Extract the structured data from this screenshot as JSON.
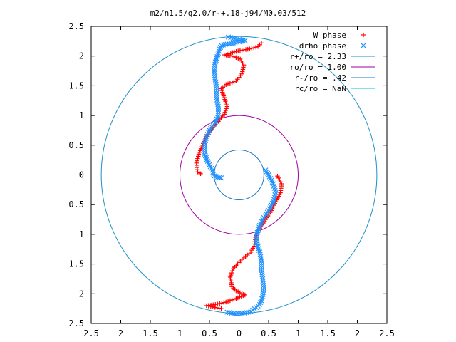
{
  "chart_data": {
    "type": "scatter",
    "title": "m2/n1.5/q2.0/r-+.18-j94/M0.03/512",
    "xlim": [
      -2.5,
      2.5
    ],
    "ylim": [
      -2.5,
      2.5
    ],
    "x_ticks": [
      -2.5,
      -2,
      -1.5,
      -1,
      -0.5,
      0,
      0.5,
      1,
      1.5,
      2,
      2.5
    ],
    "x_tick_labels": [
      "2.5",
      "2",
      "1.5",
      "1",
      "0.5",
      "0",
      "0.5",
      "1",
      "1.5",
      "2",
      "2.5"
    ],
    "y_ticks": [
      2.5,
      2,
      1.5,
      1,
      0.5,
      0,
      -0.5,
      -1,
      -1.5,
      -2,
      -2.5
    ],
    "y_tick_labels": [
      "2.5",
      "2",
      "1.5",
      "1",
      "0.5",
      "0",
      "0.5",
      "1",
      "1.5",
      "2",
      "2.5"
    ],
    "grid": false,
    "legend_position": "top-right",
    "series": [
      {
        "name": "W phase",
        "marker": "plus",
        "color": "#ff0000",
        "points": [
          [
            0.38,
            2.22
          ],
          [
            0.32,
            2.16
          ],
          [
            0.18,
            2.12
          ],
          [
            0.05,
            2.1
          ],
          [
            -0.08,
            2.07
          ],
          [
            -0.2,
            2.03
          ],
          [
            -0.25,
            2.02
          ],
          [
            -0.12,
            2.0
          ],
          [
            0.02,
            1.95
          ],
          [
            0.08,
            1.85
          ],
          [
            0.05,
            1.7
          ],
          [
            -0.05,
            1.58
          ],
          [
            -0.22,
            1.52
          ],
          [
            -0.3,
            1.45
          ],
          [
            -0.25,
            1.3
          ],
          [
            -0.2,
            1.15
          ],
          [
            -0.25,
            1.02
          ],
          [
            -0.35,
            0.9
          ],
          [
            -0.45,
            0.8
          ],
          [
            -0.55,
            0.65
          ],
          [
            -0.62,
            0.5
          ],
          [
            -0.68,
            0.35
          ],
          [
            -0.72,
            0.2
          ],
          [
            -0.7,
            0.05
          ],
          [
            -0.65,
            0.02
          ],
          [
            0.65,
            -0.02
          ],
          [
            0.72,
            -0.15
          ],
          [
            0.7,
            -0.3
          ],
          [
            0.62,
            -0.45
          ],
          [
            0.55,
            -0.6
          ],
          [
            0.45,
            -0.75
          ],
          [
            0.35,
            -0.9
          ],
          [
            0.28,
            -1.05
          ],
          [
            0.25,
            -1.2
          ],
          [
            0.2,
            -1.3
          ],
          [
            0.05,
            -1.42
          ],
          [
            -0.1,
            -1.58
          ],
          [
            -0.15,
            -1.72
          ],
          [
            -0.12,
            -1.88
          ],
          [
            -0.05,
            -1.95
          ],
          [
            0.05,
            -2.0
          ],
          [
            0.1,
            -2.02
          ],
          [
            -0.05,
            -2.08
          ],
          [
            -0.22,
            -2.14
          ],
          [
            -0.4,
            -2.18
          ],
          [
            -0.55,
            -2.2
          ],
          [
            -0.3,
            -2.25
          ]
        ]
      },
      {
        "name": "drho phase",
        "marker": "cross",
        "color": "#1e90ff",
        "points": [
          [
            -0.18,
            2.32
          ],
          [
            -0.1,
            2.3
          ],
          [
            0.0,
            2.28
          ],
          [
            0.1,
            2.26
          ],
          [
            -0.3,
            2.18
          ],
          [
            -0.35,
            2.05
          ],
          [
            -0.4,
            1.9
          ],
          [
            -0.42,
            1.75
          ],
          [
            -0.4,
            1.6
          ],
          [
            -0.38,
            1.45
          ],
          [
            -0.38,
            1.3
          ],
          [
            -0.35,
            1.15
          ],
          [
            -0.35,
            1.0
          ],
          [
            -0.4,
            0.88
          ],
          [
            -0.48,
            0.78
          ],
          [
            -0.55,
            0.65
          ],
          [
            -0.58,
            0.5
          ],
          [
            -0.58,
            0.35
          ],
          [
            -0.52,
            0.2
          ],
          [
            -0.45,
            0.08
          ],
          [
            -0.42,
            -0.02
          ],
          [
            -0.3,
            -0.05
          ],
          [
            0.45,
            0.08
          ],
          [
            0.5,
            0.0
          ],
          [
            0.58,
            -0.15
          ],
          [
            0.62,
            -0.3
          ],
          [
            0.58,
            -0.45
          ],
          [
            0.5,
            -0.6
          ],
          [
            0.42,
            -0.72
          ],
          [
            0.35,
            -0.85
          ],
          [
            0.3,
            -1.0
          ],
          [
            0.3,
            -1.15
          ],
          [
            0.35,
            -1.3
          ],
          [
            0.38,
            -1.45
          ],
          [
            0.38,
            -1.6
          ],
          [
            0.4,
            -1.75
          ],
          [
            0.42,
            -1.9
          ],
          [
            0.4,
            -2.05
          ],
          [
            0.35,
            -2.18
          ],
          [
            0.2,
            -2.3
          ],
          [
            0.05,
            -2.33
          ],
          [
            -0.05,
            -2.34
          ],
          [
            -0.2,
            -2.31
          ]
        ]
      },
      {
        "name": "r+/ro = 2.33",
        "type": "circle",
        "radius": 2.33,
        "color": "#1e90c8"
      },
      {
        "name": "ro/ro = 1.00",
        "type": "circle",
        "radius": 1.0,
        "color": "#a000a0"
      },
      {
        "name": "r-/ro = .42",
        "type": "circle",
        "radius": 0.42,
        "color": "#1e78c8"
      },
      {
        "name": "rc/ro = NaN",
        "type": "circle",
        "radius": null,
        "color": "#00c8c8"
      }
    ]
  }
}
